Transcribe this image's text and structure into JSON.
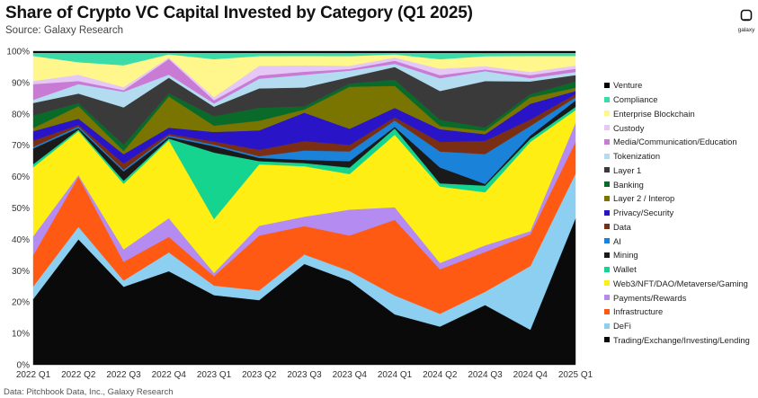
{
  "header": {
    "title": "Share of Crypto VC Capital Invested by Category (Q1 2025)",
    "subtitle": "Source: Galaxy Research",
    "footer": "Data: Pitchbook Data, Inc., Galaxy Research",
    "logo_text": "galaxy"
  },
  "chart_data": {
    "type": "area",
    "stacked": true,
    "x": [
      "2022 Q1",
      "2022 Q2",
      "2022 Q3",
      "2022 Q4",
      "2023 Q1",
      "2023 Q2",
      "2023 Q3",
      "2023 Q4",
      "2024 Q1",
      "2024 Q2",
      "2024 Q3",
      "2024 Q4",
      "2025 Q1"
    ],
    "ylim": [
      0,
      100
    ],
    "yticks": [
      "0%",
      "10%",
      "20%",
      "30%",
      "40%",
      "50%",
      "60%",
      "70%",
      "80%",
      "90%",
      "100%"
    ],
    "legend_position": "right",
    "series": [
      {
        "name": "Trading/Exchange/Investing/Lending",
        "color": "#0a0a0a",
        "values": [
          21,
          40,
          25,
          30,
          22,
          20,
          32,
          26,
          16,
          12,
          18,
          11,
          46
        ]
      },
      {
        "name": "DeFi",
        "color": "#8ccff0",
        "values": [
          4,
          4,
          2,
          6,
          3,
          3,
          3,
          3,
          6,
          4,
          4,
          20,
          14
        ]
      },
      {
        "name": "Infrastructure",
        "color": "#ff5a14",
        "values": [
          10,
          16,
          6,
          5,
          3,
          17,
          9,
          11,
          24,
          14,
          12,
          10,
          10
        ]
      },
      {
        "name": "Payments/Rewards",
        "color": "#b48bf0",
        "values": [
          6,
          0.5,
          4,
          6,
          1,
          3,
          3,
          8,
          4,
          2,
          2,
          1,
          6
        ]
      },
      {
        "name": "Web3/NFT/DAO/Metaverse/Gaming",
        "color": "#ffee14",
        "values": [
          22,
          14,
          21,
          25,
          17,
          19,
          16,
          11,
          23,
          24,
          16,
          28,
          4
        ]
      },
      {
        "name": "Wallet",
        "color": "#14d490",
        "values": [
          1,
          0.5,
          1,
          0.5,
          21,
          1,
          1,
          2,
          2,
          1,
          2,
          1,
          1
        ]
      },
      {
        "name": "Mining",
        "color": "#1a1a1a",
        "values": [
          5,
          0.5,
          3,
          0.5,
          2,
          1,
          1,
          2,
          0.5,
          5,
          0.5,
          1,
          2
        ]
      },
      {
        "name": "AI",
        "color": "#1a82d8",
        "values": [
          0.5,
          0.5,
          0.5,
          0.5,
          0.5,
          0.5,
          3,
          3,
          2,
          5,
          9,
          3,
          1
        ]
      },
      {
        "name": "Data",
        "color": "#7a2f14",
        "values": [
          2,
          0.5,
          2,
          0.5,
          1,
          2,
          3,
          2,
          1,
          3,
          4,
          2,
          1
        ]
      },
      {
        "name": "Privacy/Security",
        "color": "#2a14c8",
        "values": [
          3,
          2,
          3,
          2,
          3,
          6,
          9,
          5,
          3,
          4,
          2,
          5,
          1
        ]
      },
      {
        "name": "Layer 2 / Interop",
        "color": "#7a7400",
        "values": [
          1,
          4,
          1,
          10,
          2,
          3,
          1,
          13,
          7,
          1,
          1,
          2,
          1
        ]
      },
      {
        "name": "Banking",
        "color": "#0a6a2a",
        "values": [
          4,
          1,
          2,
          1,
          3,
          4,
          1,
          1,
          2,
          2,
          1,
          1,
          2
        ]
      },
      {
        "name": "Layer 1",
        "color": "#3a3a3a",
        "values": [
          4,
          3,
          12,
          5,
          3,
          6,
          6,
          2,
          4,
          9,
          14,
          4,
          2
        ]
      },
      {
        "name": "Tokenization",
        "color": "#b4dcf0",
        "values": [
          1,
          3,
          5,
          1,
          1,
          3,
          4,
          2,
          1,
          4,
          3,
          1,
          1
        ]
      },
      {
        "name": "Media/Communication/Education",
        "color": "#c87ad4",
        "values": [
          5,
          1,
          0.5,
          5,
          1,
          1,
          1,
          0.5,
          1,
          1,
          0.5,
          1,
          1
        ]
      },
      {
        "name": "Custody",
        "color": "#e5c8f5",
        "values": [
          1,
          2,
          1,
          0.5,
          1,
          3,
          2,
          1,
          1,
          2,
          1,
          1,
          1
        ]
      },
      {
        "name": "Enterprise Blockchain",
        "color": "#fff68c",
        "values": [
          8,
          4,
          7,
          1,
          12,
          3,
          3,
          3,
          1,
          3,
          3,
          5,
          3
        ]
      },
      {
        "name": "Compliance",
        "color": "#3cdcaa",
        "values": [
          1,
          3,
          4,
          0.5,
          2,
          1,
          1,
          1,
          0.5,
          2,
          1,
          1,
          1
        ]
      },
      {
        "name": "Venture",
        "color": "#050505",
        "values": [
          0.5,
          0.5,
          0.5,
          0.5,
          0.5,
          0.5,
          0.5,
          0.5,
          0.5,
          0.5,
          0.5,
          0.5,
          0.5
        ]
      }
    ]
  }
}
